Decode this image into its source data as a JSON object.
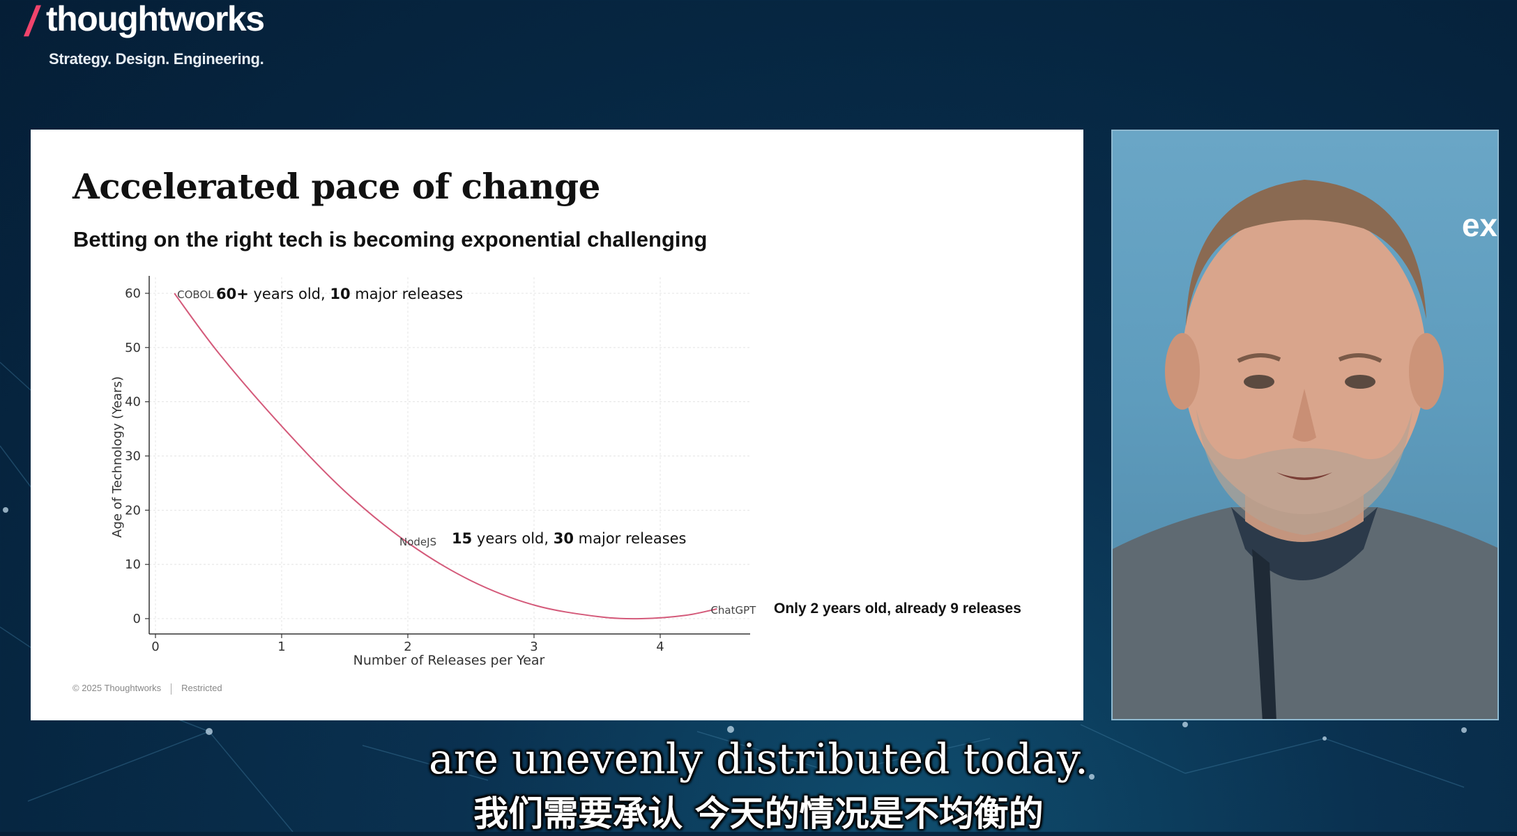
{
  "brand": {
    "logo_text": "thoughtworks",
    "tagline": "Strategy. Design. Engineering."
  },
  "slide": {
    "title": "Accelerated pace of change",
    "subtitle": "Betting on the right tech is becoming exponential challenging",
    "footer_copyright": "© 2025 Thoughtworks",
    "footer_label": "Restricted"
  },
  "chart_data": {
    "type": "line",
    "title": "",
    "xlabel": "Number of Releases per Year",
    "ylabel": "Age of Technology (Years)",
    "xlim": [
      0,
      4.7
    ],
    "ylim": [
      -3,
      62
    ],
    "xticks": [
      0,
      1,
      2,
      3,
      4
    ],
    "yticks": [
      0,
      10,
      20,
      30,
      40,
      50,
      60
    ],
    "grid": true,
    "line_color": "#d45a7a",
    "curve": {
      "x": [
        0.15,
        0.5,
        1.0,
        1.5,
        2.0,
        2.5,
        3.0,
        3.5,
        3.85,
        4.2,
        4.45
      ],
      "y": [
        60,
        49,
        35.5,
        23.5,
        14,
        7,
        2.5,
        0.4,
        0,
        0.6,
        1.8
      ]
    },
    "points": [
      {
        "name": "COBOL",
        "x": 0.15,
        "y": 60,
        "note_bold_1": "60+",
        "note_text_1": " years old, ",
        "note_bold_2": "10",
        "note_text_2": " major releases"
      },
      {
        "name": "NodeJS",
        "x": 2.0,
        "y": 14.5,
        "note_bold_1": "15",
        "note_text_1": " years old, ",
        "note_bold_2": "30",
        "note_text_2": " major releases"
      },
      {
        "name": "ChatGPT",
        "x": 4.45,
        "y": 1.8,
        "note_full_bold": "Only 2 years old, already 9 releases"
      }
    ]
  },
  "camera": {
    "overlay_text": "ex"
  },
  "subtitles": {
    "english": "are unevenly distributed today.",
    "chinese": "我们需要承认 今天的情况是不均衡的"
  }
}
